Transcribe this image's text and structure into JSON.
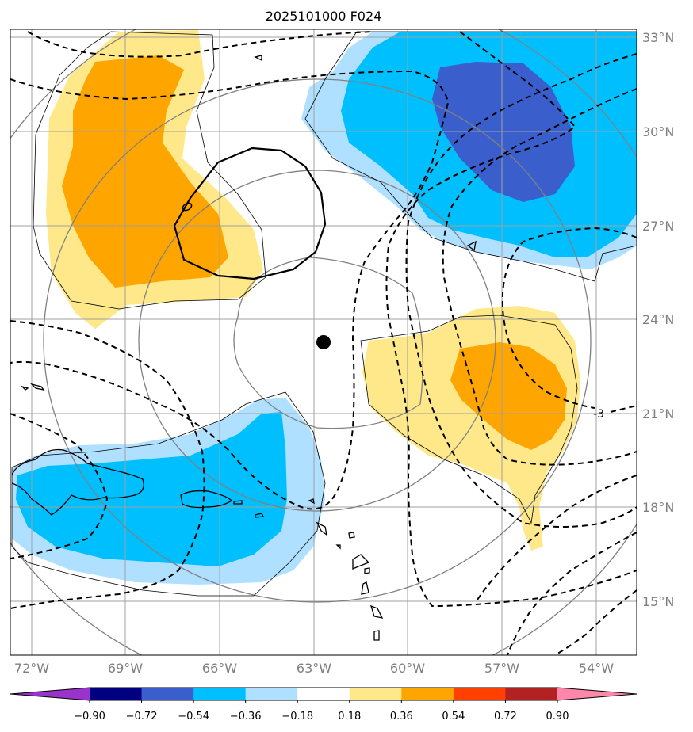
{
  "title": "2025101000 F024",
  "lat_labels": [
    "33°N",
    "30°N",
    "27°N",
    "24°N",
    "21°N",
    "18°N",
    "15°N"
  ],
  "lon_labels": [
    "72°W",
    "69°W",
    "66°W",
    "63°W",
    "60°W",
    "57°W",
    "54°W"
  ],
  "contour_label": "-3",
  "colorbar": {
    "tick_labels": [
      "−0.90",
      "−0.72",
      "−0.54",
      "−0.36",
      "−0.18",
      "0.18",
      "0.36",
      "0.54",
      "0.72",
      "0.90"
    ],
    "colors": [
      "#9933cc",
      "#000080",
      "#3a5fcd",
      "#00bfff",
      "#b0e0ff",
      "#ffffff",
      "#ffe88a",
      "#ffa500",
      "#ff4000",
      "#b22222",
      "#ff88aa"
    ]
  },
  "field_colors": {
    "light_yellow": "#ffe88a",
    "orange": "#ffa500",
    "light_blue": "#b0e0ff",
    "blue": "#00bfff",
    "dark_blue": "#3a5fcd"
  }
}
